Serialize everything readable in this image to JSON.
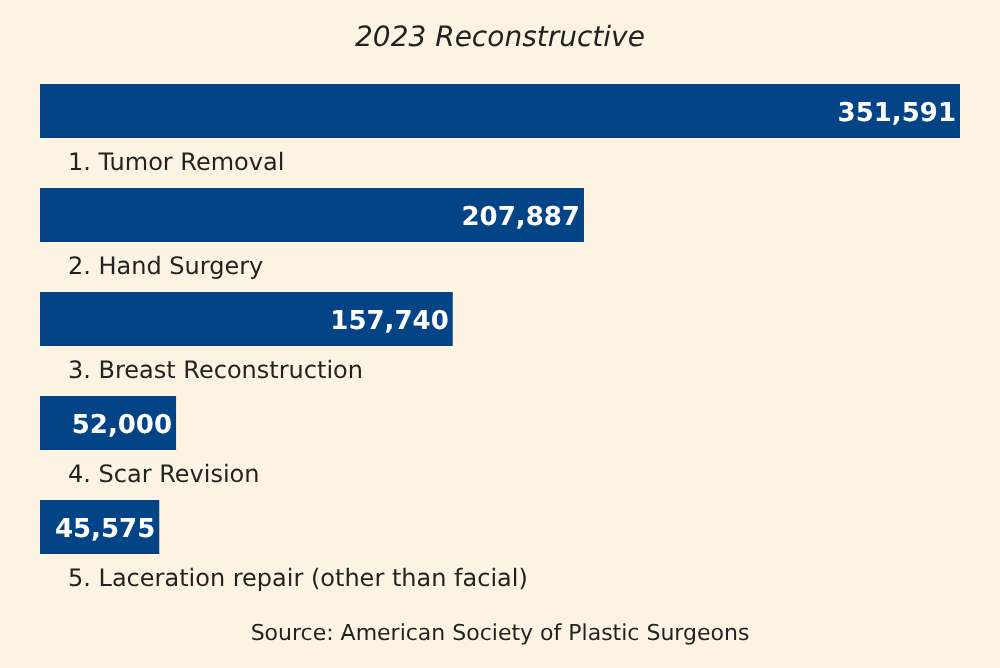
{
  "chart_data": {
    "type": "bar",
    "orientation": "horizontal",
    "title": "2023 Reconstructive",
    "categories": [
      "1. Tumor Removal",
      "2. Hand Surgery",
      "3. Breast Reconstruction",
      "4. Scar Revision",
      "5. Laceration repair (other than facial)"
    ],
    "values": [
      351591,
      207887,
      157740,
      52000,
      45575
    ],
    "color": "#034487",
    "value_labels": [
      "351,591",
      "207,887",
      "157,740",
      "52,000",
      "45,575"
    ],
    "annotations": [
      "Source: American Society of Plastic Surgeons"
    ]
  }
}
